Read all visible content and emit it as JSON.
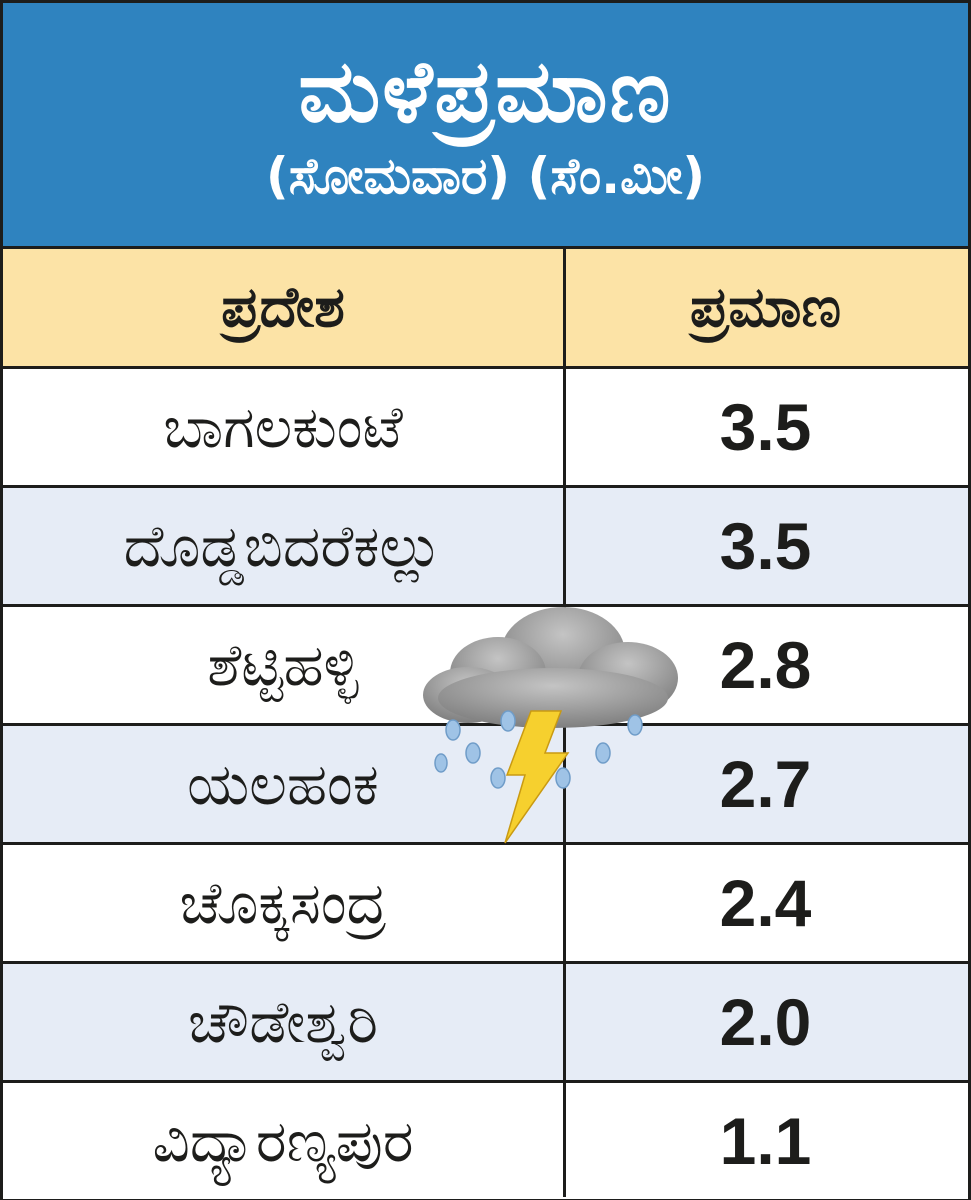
{
  "colors": {
    "header_bg": "#2f83bf",
    "column_header_bg": "#fce3a6",
    "row_alt_bg": "#e6ecf6",
    "row_bg": "#ffffff",
    "border": "#1d1d1b",
    "lightning": "#f6d02e",
    "cloud": "#9a9a9a",
    "rain": "#9fc3e6"
  },
  "header": {
    "title": "ಮಳೆಪ್ರಮಾಣ",
    "subtitle": "(ಸೋಮವಾರ) (ಸೆಂ.ಮೀ)"
  },
  "chart_data": {
    "type": "table",
    "title": "ಮಳೆಪ್ರಮಾಣ",
    "subtitle": "(ಸೋಮವಾರ) (ಸೆಂ.ಮೀ)",
    "columns": [
      "ಪ್ರದೇಶ",
      "ಪ್ರಮಾಣ"
    ],
    "rows": [
      {
        "region": "ಬಾಗಲಕುಂಟೆ",
        "value": "3.5"
      },
      {
        "region": "ದೊಡ್ಡಬಿದರೆಕಲ್ಲು",
        "value": "3.5"
      },
      {
        "region": "ಶೆಟ್ಟಿಹಳ್ಳಿ",
        "value": "2.8"
      },
      {
        "region": "ಯಲಹಂಕ",
        "value": "2.7"
      },
      {
        "region": "ಚೊಕ್ಕಸಂದ್ರ",
        "value": "2.4"
      },
      {
        "region": "ಚೌಡೇಶ್ವರಿ",
        "value": "2.0"
      },
      {
        "region": "ವಿದ್ಯಾರಣ್ಯಪುರ",
        "value": "1.1"
      }
    ]
  },
  "decoration": {
    "icon": "thundercloud-icon"
  }
}
